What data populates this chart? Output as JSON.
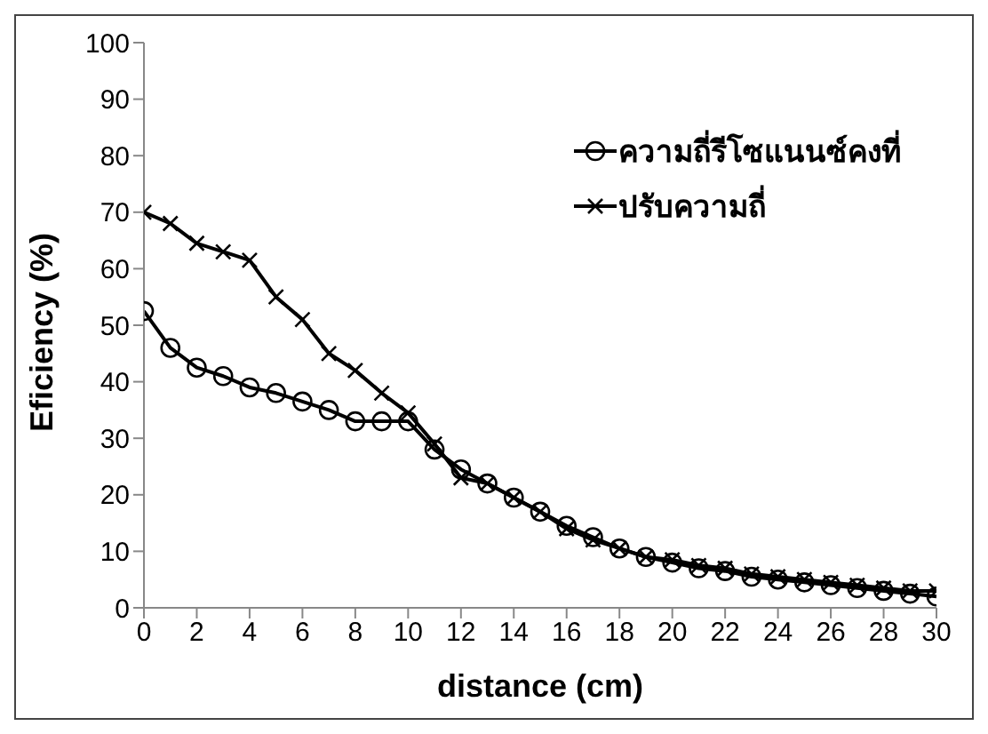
{
  "chart_data": {
    "type": "line",
    "xlabel": "distance (cm)",
    "ylabel": "Eficiency (%)",
    "x": [
      0,
      1,
      2,
      3,
      4,
      5,
      6,
      7,
      8,
      9,
      10,
      11,
      12,
      13,
      14,
      15,
      16,
      17,
      18,
      19,
      20,
      21,
      22,
      23,
      24,
      25,
      26,
      27,
      28,
      29,
      30
    ],
    "xlim": [
      0,
      30
    ],
    "xticks": [
      0,
      2,
      4,
      6,
      8,
      10,
      12,
      14,
      16,
      18,
      20,
      22,
      24,
      26,
      28,
      30
    ],
    "ylim": [
      0,
      100
    ],
    "yticks": [
      0,
      10,
      20,
      30,
      40,
      50,
      60,
      70,
      80,
      90,
      100
    ],
    "grid": false,
    "legend": "top right",
    "series": [
      {
        "name": "ความถี่รีโซแนนซ์คงที่",
        "color": "#000000",
        "marker": "circle",
        "values": [
          52.5,
          46,
          42.5,
          41,
          39,
          38,
          36.5,
          35,
          33,
          33,
          33,
          28,
          24.5,
          22,
          19.5,
          17,
          14.5,
          12.5,
          10.5,
          9,
          8,
          7,
          6.5,
          5.5,
          5,
          4.5,
          4,
          3.5,
          3,
          2.5,
          2
        ]
      },
      {
        "name": "ปรับความถี่",
        "color": "#000000",
        "marker": "cross",
        "values": [
          70,
          68,
          64.5,
          63,
          61.5,
          55,
          51,
          45,
          42,
          38,
          34.5,
          29,
          23,
          22,
          19.5,
          17,
          14,
          12,
          10.5,
          9,
          8.5,
          7.5,
          7,
          6,
          5.5,
          5,
          4.5,
          4,
          3.5,
          3,
          3
        ]
      }
    ]
  }
}
